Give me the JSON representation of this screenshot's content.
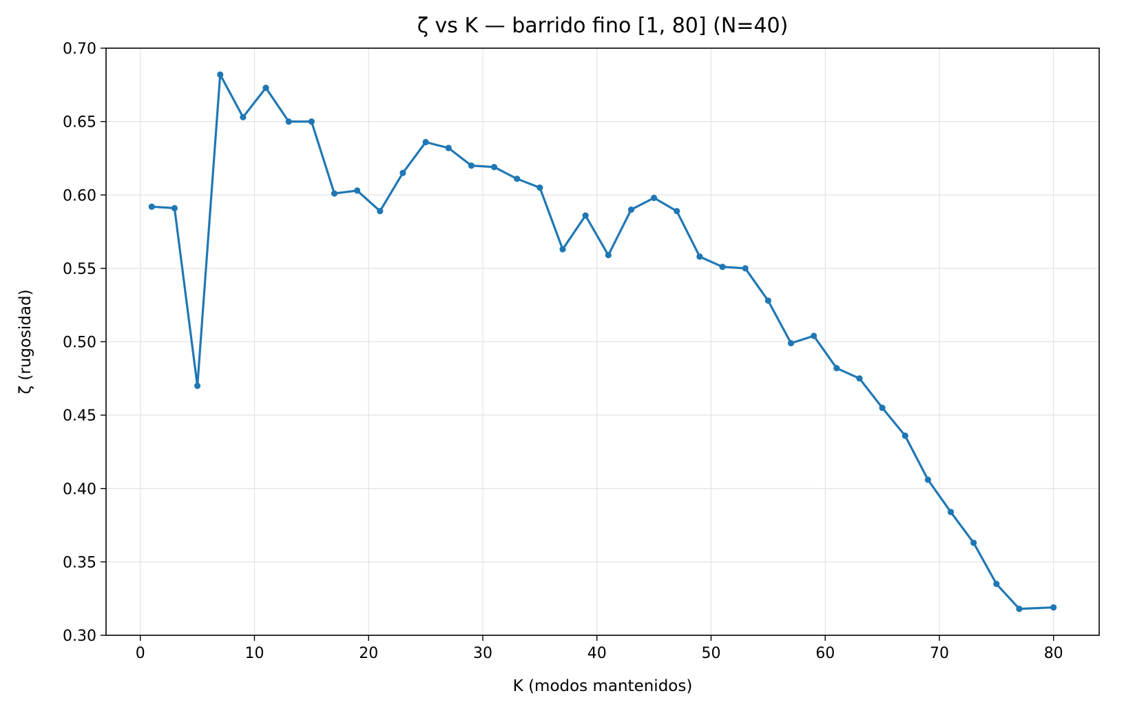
{
  "chart_data": {
    "type": "line",
    "title": "ζ vs K — barrido fino [1, 80] (N=40)",
    "xlabel": "K (modos mantenidos)",
    "ylabel": "ζ (rugosidad)",
    "xlim": [
      -3,
      84
    ],
    "ylim": [
      0.3,
      0.7
    ],
    "grid": true,
    "x_ticks": [
      0,
      10,
      20,
      30,
      40,
      50,
      60,
      70,
      80
    ],
    "x_tick_labels": [
      "0",
      "10",
      "20",
      "30",
      "40",
      "50",
      "60",
      "70",
      "80"
    ],
    "y_ticks": [
      0.3,
      0.35,
      0.4,
      0.45,
      0.5,
      0.55,
      0.6,
      0.65,
      0.7
    ],
    "y_tick_labels": [
      "0.30",
      "0.35",
      "0.40",
      "0.45",
      "0.50",
      "0.55",
      "0.60",
      "0.65",
      "0.70"
    ],
    "series": [
      {
        "color": "#1f77b4",
        "marker": "circle",
        "x": [
          1,
          3,
          5,
          7,
          9,
          11,
          13,
          15,
          17,
          19,
          21,
          23,
          25,
          27,
          29,
          31,
          33,
          35,
          37,
          39,
          41,
          43,
          45,
          47,
          49,
          51,
          53,
          55,
          57,
          59,
          61,
          63,
          65,
          67,
          69,
          71,
          73,
          75,
          77,
          80
        ],
        "y": [
          0.592,
          0.591,
          0.47,
          0.682,
          0.653,
          0.673,
          0.65,
          0.65,
          0.601,
          0.603,
          0.589,
          0.615,
          0.636,
          0.632,
          0.62,
          0.619,
          0.611,
          0.605,
          0.563,
          0.586,
          0.559,
          0.59,
          0.598,
          0.589,
          0.558,
          0.551,
          0.55,
          0.528,
          0.499,
          0.504,
          0.482,
          0.475,
          0.455,
          0.436,
          0.406,
          0.384,
          0.363,
          0.335,
          0.318,
          0.319
        ]
      }
    ]
  }
}
